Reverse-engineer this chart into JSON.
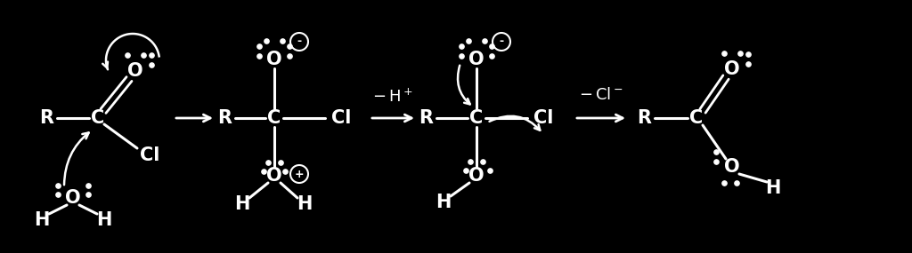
{
  "background_color": "#000000",
  "text_color": "#ffffff",
  "figsize": [
    10.24,
    2.85
  ],
  "dpi": 100,
  "xlim": [
    0,
    10.24
  ],
  "ylim": [
    0,
    2.85
  ]
}
